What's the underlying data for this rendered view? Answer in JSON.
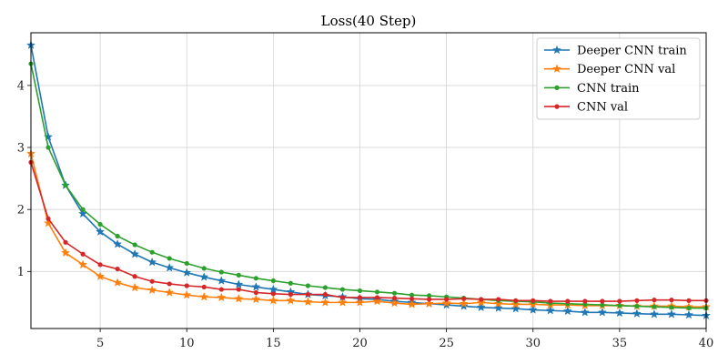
{
  "chart_data": {
    "type": "line",
    "title": "Loss(40 Step)",
    "xlabel": "",
    "ylabel": "",
    "xlim": [
      1,
      40
    ],
    "ylim": [
      0.08,
      4.85
    ],
    "xticks": [
      5,
      10,
      15,
      20,
      25,
      30,
      35,
      40
    ],
    "yticks": [
      1,
      2,
      3,
      4
    ],
    "grid": true,
    "legend_position": "top-right",
    "x": [
      1,
      2,
      3,
      4,
      5,
      6,
      7,
      8,
      9,
      10,
      11,
      12,
      13,
      14,
      15,
      16,
      17,
      18,
      19,
      20,
      21,
      22,
      23,
      24,
      25,
      26,
      27,
      28,
      29,
      30,
      31,
      32,
      33,
      34,
      35,
      36,
      37,
      38,
      39,
      40
    ],
    "series": [
      {
        "name": "Deeper CNN train",
        "color": "#1f77b4",
        "marker": "star",
        "values": [
          4.65,
          3.17,
          2.39,
          1.93,
          1.64,
          1.44,
          1.28,
          1.15,
          1.06,
          0.98,
          0.91,
          0.85,
          0.79,
          0.75,
          0.71,
          0.67,
          0.63,
          0.61,
          0.59,
          0.56,
          0.55,
          0.52,
          0.5,
          0.48,
          0.46,
          0.44,
          0.42,
          0.41,
          0.4,
          0.38,
          0.37,
          0.36,
          0.34,
          0.34,
          0.33,
          0.32,
          0.31,
          0.31,
          0.3,
          0.29
        ]
      },
      {
        "name": "Deeper CNN val",
        "color": "#ff7f0e",
        "marker": "star",
        "values": [
          2.9,
          1.78,
          1.3,
          1.11,
          0.92,
          0.82,
          0.74,
          0.7,
          0.66,
          0.62,
          0.59,
          0.58,
          0.56,
          0.55,
          0.53,
          0.53,
          0.51,
          0.5,
          0.5,
          0.5,
          0.52,
          0.49,
          0.47,
          0.48,
          0.49,
          0.48,
          0.5,
          0.48,
          0.47,
          0.47,
          0.46,
          0.46,
          0.45,
          0.45,
          0.45,
          0.44,
          0.44,
          0.44,
          0.43,
          0.43
        ]
      },
      {
        "name": "CNN train",
        "color": "#2ca02c",
        "marker": "dot",
        "values": [
          4.35,
          3.0,
          2.39,
          2.0,
          1.76,
          1.57,
          1.43,
          1.31,
          1.21,
          1.13,
          1.05,
          0.99,
          0.94,
          0.89,
          0.85,
          0.81,
          0.77,
          0.74,
          0.71,
          0.69,
          0.67,
          0.65,
          0.62,
          0.61,
          0.59,
          0.57,
          0.55,
          0.53,
          0.52,
          0.51,
          0.49,
          0.48,
          0.47,
          0.46,
          0.45,
          0.44,
          0.43,
          0.42,
          0.41,
          0.41
        ]
      },
      {
        "name": "CNN val",
        "color": "#d62728",
        "marker": "dot",
        "values": [
          2.76,
          1.85,
          1.47,
          1.28,
          1.11,
          1.04,
          0.92,
          0.84,
          0.8,
          0.77,
          0.75,
          0.71,
          0.71,
          0.66,
          0.64,
          0.63,
          0.63,
          0.63,
          0.58,
          0.58,
          0.58,
          0.57,
          0.56,
          0.55,
          0.55,
          0.56,
          0.55,
          0.55,
          0.53,
          0.53,
          0.52,
          0.52,
          0.52,
          0.52,
          0.52,
          0.53,
          0.54,
          0.54,
          0.53,
          0.53
        ]
      }
    ]
  }
}
